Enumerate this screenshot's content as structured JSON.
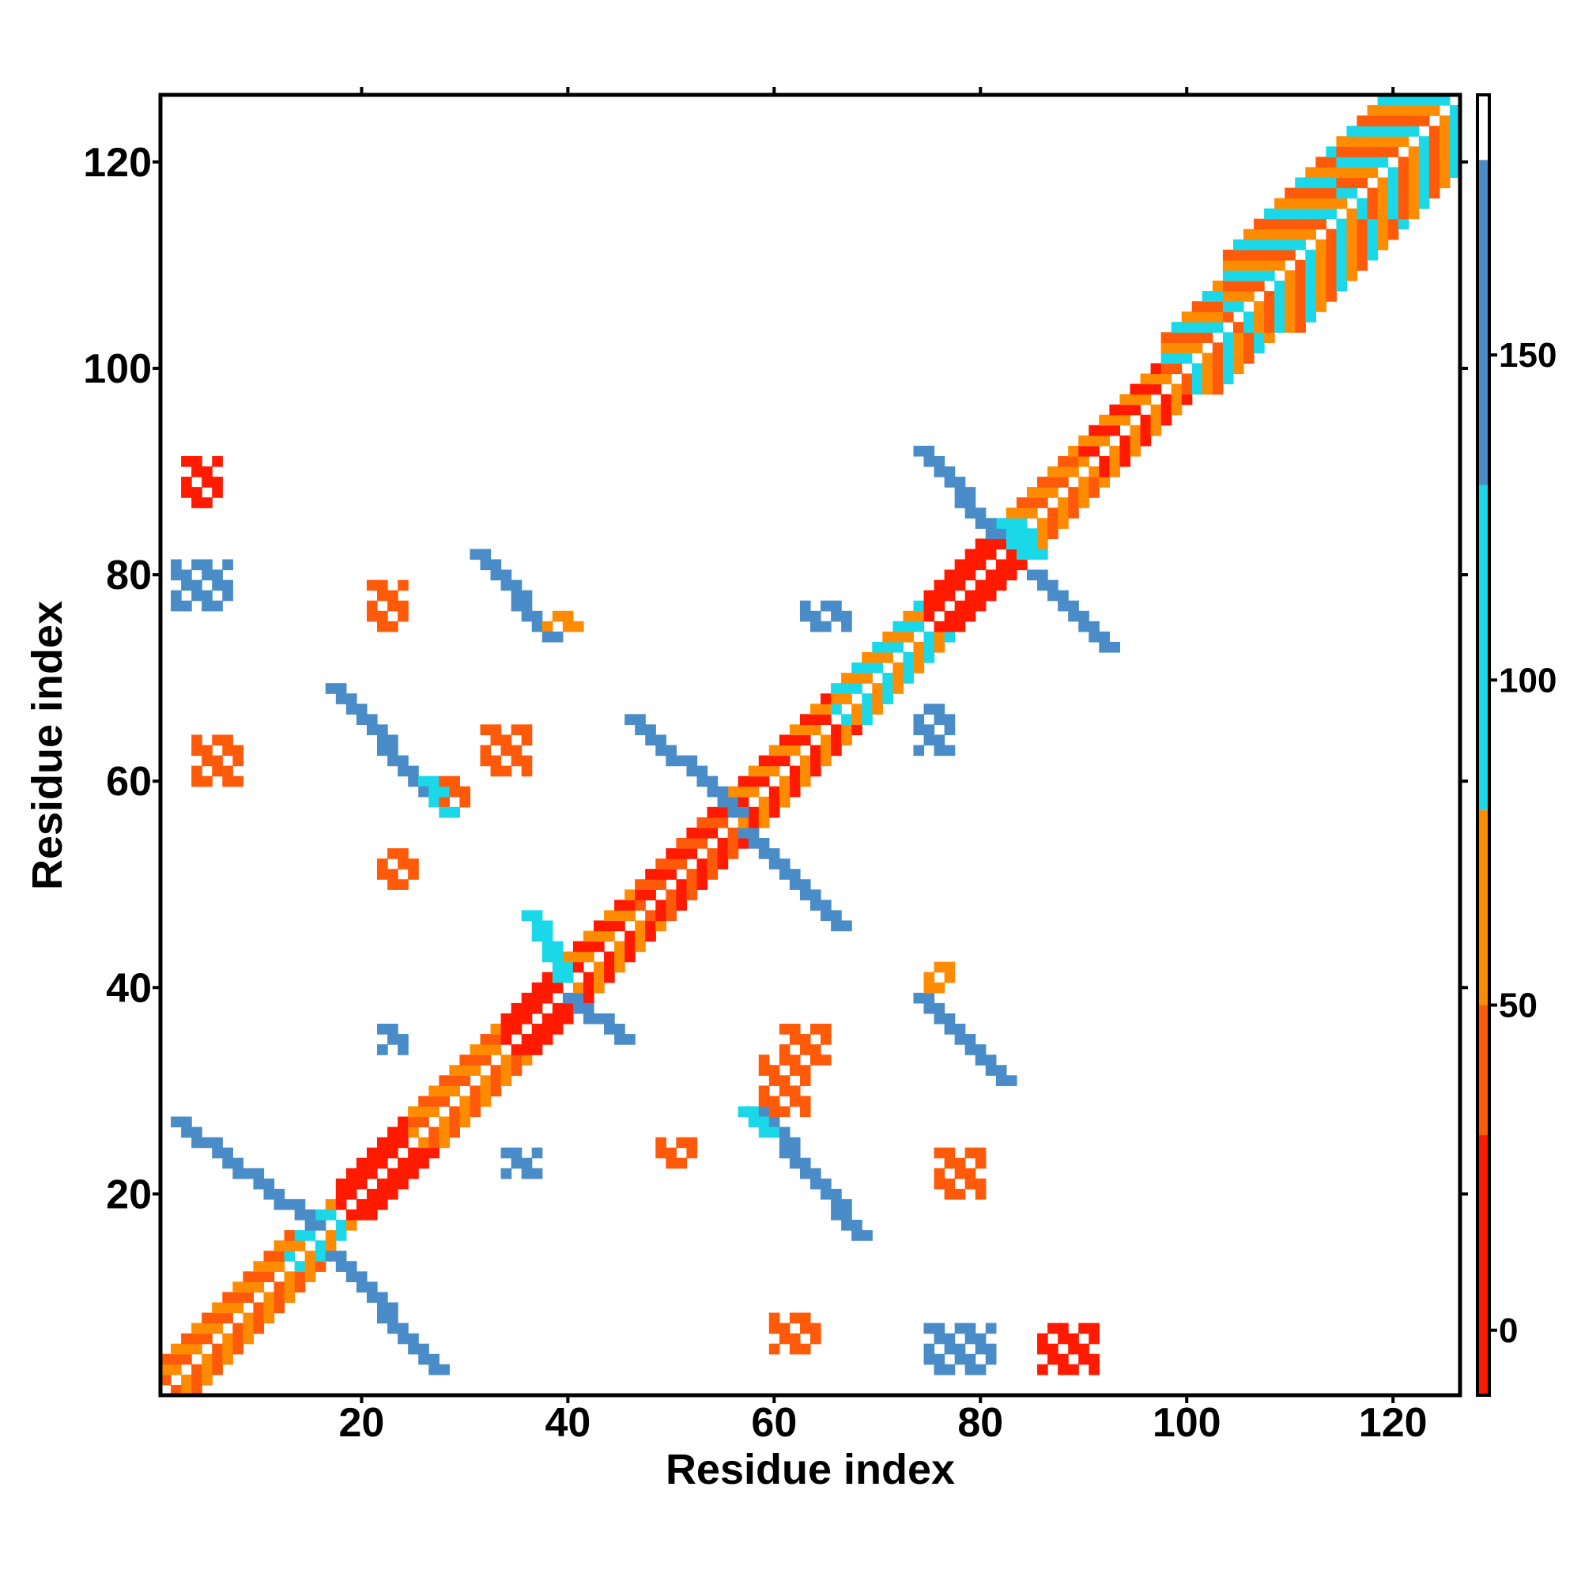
{
  "chart_data": {
    "type": "heatmap",
    "title": "",
    "xlabel": "Residue index",
    "ylabel": "Residue index",
    "xlim": [
      0.5,
      126.5
    ],
    "ylim": [
      0.5,
      126.5
    ],
    "xticks": [
      20,
      40,
      60,
      80,
      100,
      120
    ],
    "yticks": [
      20,
      40,
      60,
      80,
      100,
      120
    ],
    "grid": false,
    "colorbar": {
      "range": [
        -10,
        190
      ],
      "ticks": [
        0,
        50,
        100,
        150
      ],
      "bands": [
        {
          "from": -10,
          "to": 30,
          "color": "#ff1a00"
        },
        {
          "from": 30,
          "to": 50,
          "color": "#ff5a0a"
        },
        {
          "from": 50,
          "to": 80,
          "color": "#ff8c00"
        },
        {
          "from": 80,
          "to": 130,
          "color": "#1ad8e8"
        },
        {
          "from": 130,
          "to": 180,
          "color": "#4a8cc8"
        },
        {
          "from": 180,
          "to": 190,
          "color": "#ffffff"
        }
      ]
    },
    "colors": {
      "red": "#ff1a00",
      "orange_red": "#ff5a0a",
      "orange": "#ff8c00",
      "cyan": "#1ad8e8",
      "blue": "#4a8cc8"
    },
    "diagonal_bands": [
      {
        "from": 1,
        "to": 13,
        "width": 3,
        "pattern": [
          "orange_red",
          "orange"
        ]
      },
      {
        "from": 13,
        "to": 18,
        "width": 2,
        "pattern": [
          "cyan",
          "orange"
        ]
      },
      {
        "from": 18,
        "to": 25,
        "width": 3,
        "pattern": [
          "red",
          "red"
        ]
      },
      {
        "from": 25,
        "to": 34,
        "width": 3,
        "pattern": [
          "orange",
          "orange_red"
        ]
      },
      {
        "from": 34,
        "to": 40,
        "width": 3,
        "pattern": [
          "red",
          "red"
        ]
      },
      {
        "from": 40,
        "to": 47,
        "width": 3,
        "pattern": [
          "red",
          "orange"
        ]
      },
      {
        "from": 47,
        "to": 56,
        "width": 3,
        "pattern": [
          "orange_red",
          "red"
        ]
      },
      {
        "from": 56,
        "to": 66,
        "width": 3,
        "pattern": [
          "red",
          "orange"
        ]
      },
      {
        "from": 66,
        "to": 75,
        "width": 3,
        "pattern": [
          "orange",
          "cyan"
        ]
      },
      {
        "from": 75,
        "to": 83,
        "width": 3,
        "pattern": [
          "red",
          "red"
        ]
      },
      {
        "from": 83,
        "to": 90,
        "width": 3,
        "pattern": [
          "orange",
          "orange_red"
        ]
      },
      {
        "from": 90,
        "to": 98,
        "width": 3,
        "pattern": [
          "red",
          "orange"
        ]
      },
      {
        "from": 98,
        "to": 104,
        "width": 5,
        "pattern": [
          "orange",
          "orange_red",
          "cyan"
        ]
      },
      {
        "from": 104,
        "to": 115,
        "width": 7,
        "pattern": [
          "orange_red",
          "cyan",
          "orange"
        ]
      },
      {
        "from": 115,
        "to": 126,
        "width": 7,
        "pattern": [
          "cyan",
          "orange_red",
          "orange"
        ]
      }
    ],
    "antidiagonal_strands": [
      {
        "x": [
          2,
          15
        ],
        "y": [
          27,
          17
        ],
        "width": 2,
        "color": "blue"
      },
      {
        "x": [
          17,
          27
        ],
        "y": [
          14,
          3
        ],
        "width": 2,
        "color": "blue"
      },
      {
        "x": [
          17,
          27
        ],
        "y": [
          69,
          58
        ],
        "width": 2,
        "color": "blue"
      },
      {
        "x": [
          26,
          28
        ],
        "y": [
          60,
          57
        ],
        "width": 2,
        "color": "cyan"
      },
      {
        "x": [
          31,
          38
        ],
        "y": [
          82,
          74
        ],
        "width": 2,
        "color": "blue"
      },
      {
        "x": [
          36,
          39
        ],
        "y": [
          47,
          41
        ],
        "width": 2,
        "color": "cyan"
      },
      {
        "x": [
          40,
          45
        ],
        "y": [
          39,
          35
        ],
        "width": 2,
        "color": "blue"
      },
      {
        "x": [
          46,
          56
        ],
        "y": [
          66,
          57
        ],
        "width": 2,
        "color": "blue"
      },
      {
        "x": [
          57,
          66
        ],
        "y": [
          55,
          46
        ],
        "width": 2,
        "color": "blue"
      },
      {
        "x": [
          58,
          68
        ],
        "y": [
          28,
          16
        ],
        "width": 2,
        "color": "blue"
      },
      {
        "x": [
          57,
          59
        ],
        "y": [
          28,
          26
        ],
        "width": 2,
        "color": "cyan"
      },
      {
        "x": [
          74,
          81
        ],
        "y": [
          92,
          84
        ],
        "width": 2,
        "color": "blue"
      },
      {
        "x": [
          82,
          84
        ],
        "y": [
          85,
          82
        ],
        "width": 3,
        "color": "cyan"
      },
      {
        "x": [
          85,
          92
        ],
        "y": [
          80,
          73
        ],
        "width": 2,
        "color": "blue"
      },
      {
        "x": [
          74,
          82
        ],
        "y": [
          39,
          31
        ],
        "width": 2,
        "color": "blue"
      }
    ],
    "clusters": [
      {
        "x": [
          3,
          6
        ],
        "y": [
          87,
          91
        ],
        "color": "red"
      },
      {
        "x": [
          2,
          7
        ],
        "y": [
          77,
          81
        ],
        "color": "blue"
      },
      {
        "x": [
          4,
          8
        ],
        "y": [
          60,
          64
        ],
        "color": "orange_red"
      },
      {
        "x": [
          21,
          24
        ],
        "y": [
          75,
          79
        ],
        "color": "orange_red"
      },
      {
        "x": [
          28,
          30
        ],
        "y": [
          58,
          60
        ],
        "color": "orange_red"
      },
      {
        "x": [
          32,
          36
        ],
        "y": [
          61,
          65
        ],
        "color": "orange_red"
      },
      {
        "x": [
          38,
          41
        ],
        "y": [
          75,
          76
        ],
        "color": "orange"
      },
      {
        "x": [
          22,
          25
        ],
        "y": [
          50,
          53
        ],
        "color": "orange_red"
      },
      {
        "x": [
          22,
          24
        ],
        "y": [
          34,
          36
        ],
        "color": "blue"
      },
      {
        "x": [
          34,
          37
        ],
        "y": [
          22,
          24
        ],
        "color": "blue"
      },
      {
        "x": [
          49,
          52
        ],
        "y": [
          23,
          25
        ],
        "color": "orange_red"
      },
      {
        "x": [
          59,
          63
        ],
        "y": [
          28,
          33
        ],
        "color": "orange_red"
      },
      {
        "x": [
          61,
          65
        ],
        "y": [
          33,
          36
        ],
        "color": "orange_red"
      },
      {
        "x": [
          60,
          64
        ],
        "y": [
          5,
          8
        ],
        "color": "orange_red"
      },
      {
        "x": [
          75,
          77
        ],
        "y": [
          40,
          42
        ],
        "color": "orange"
      },
      {
        "x": [
          76,
          80
        ],
        "y": [
          20,
          24
        ],
        "color": "orange_red"
      },
      {
        "x": [
          75,
          81
        ],
        "y": [
          3,
          7
        ],
        "color": "blue"
      },
      {
        "x": [
          86,
          91
        ],
        "y": [
          3,
          7
        ],
        "color": "red"
      },
      {
        "x": [
          63,
          67
        ],
        "y": [
          75,
          77
        ],
        "color": "blue"
      },
      {
        "x": [
          74,
          77
        ],
        "y": [
          63,
          67
        ],
        "color": "blue"
      }
    ]
  }
}
